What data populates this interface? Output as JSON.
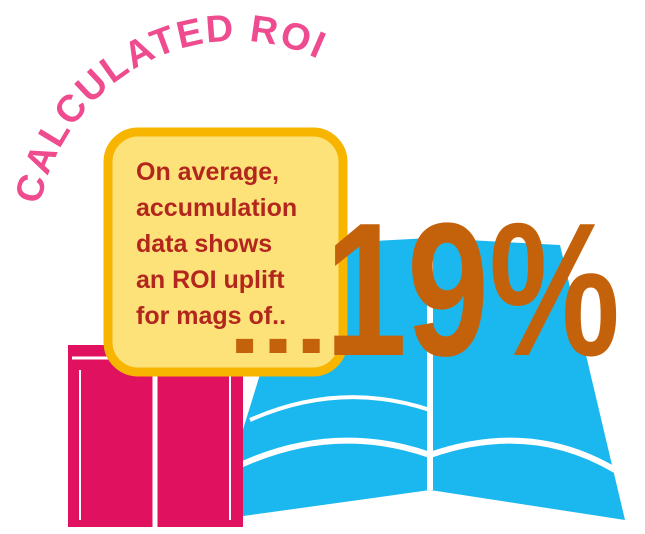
{
  "title": "CALCULATED ROI",
  "callout": {
    "lines": [
      "On average,",
      "accumulation",
      "data shows",
      "an ROI uplift",
      "for mags of.."
    ]
  },
  "ellipsis": "...",
  "headline": "19%"
}
